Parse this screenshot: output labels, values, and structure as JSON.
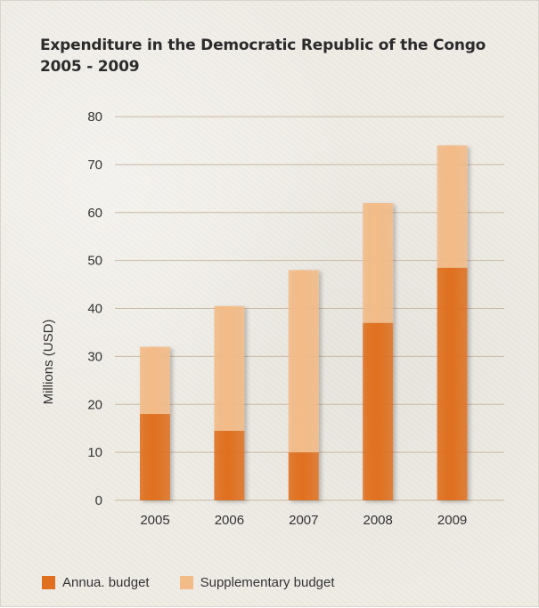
{
  "chart_data": {
    "type": "bar",
    "stacked": true,
    "title": "Expenditure in the Democratic Republic of the Congo",
    "subtitle": "2005 - 2009",
    "xlabel": "",
    "ylabel": "Millions (USD)",
    "ylim": [
      0,
      80
    ],
    "yticks": [
      0,
      10,
      20,
      30,
      40,
      50,
      60,
      70,
      80
    ],
    "grid": true,
    "legend_position": "bottom",
    "categories": [
      "2005",
      "2006",
      "2007",
      "2008",
      "2009"
    ],
    "series": [
      {
        "name": "Annua. budget",
        "color": "#e0701f",
        "values": [
          18,
          14.5,
          10,
          37,
          48.5
        ]
      },
      {
        "name": "Supplementary budget",
        "color": "#f3bb87",
        "values": [
          14,
          26,
          38,
          25,
          25.5
        ]
      }
    ]
  }
}
